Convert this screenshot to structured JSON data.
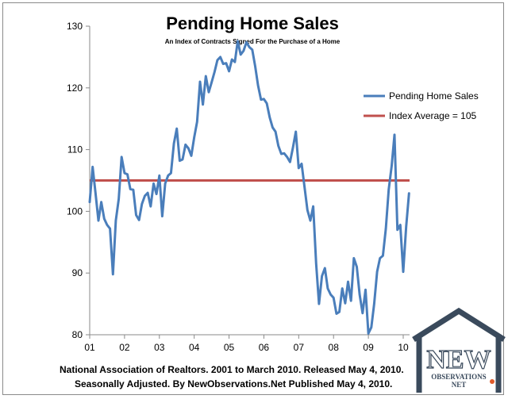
{
  "chart_data": {
    "type": "line",
    "title": "Pending Home Sales",
    "subtitle": "An Index of Contracts Signed For the Purchase of a Home",
    "ylim": [
      80,
      130
    ],
    "yticks": [
      80,
      90,
      100,
      110,
      120,
      130
    ],
    "xlim": [
      2001.0,
      2010.25
    ],
    "xticks": [
      {
        "value": 2001,
        "label": "01"
      },
      {
        "value": 2002,
        "label": "02"
      },
      {
        "value": 2003,
        "label": "03"
      },
      {
        "value": 2004,
        "label": "04"
      },
      {
        "value": 2005,
        "label": "05"
      },
      {
        "value": 2006,
        "label": "06"
      },
      {
        "value": 2007,
        "label": "07"
      },
      {
        "value": 2008,
        "label": "08"
      },
      {
        "value": 2009,
        "label": "09"
      },
      {
        "value": 2010,
        "label": "10"
      }
    ],
    "legend_position": "right",
    "grid": false,
    "series": [
      {
        "name": "Pending Home Sales",
        "color": "#4a7ebb",
        "x": [
          2001.0,
          2001.0833,
          2001.1667,
          2001.25,
          2001.3333,
          2001.4167,
          2001.5,
          2001.5833,
          2001.6667,
          2001.75,
          2001.8333,
          2001.9167,
          2002.0,
          2002.0833,
          2002.1667,
          2002.25,
          2002.3333,
          2002.4167,
          2002.5,
          2002.5833,
          2002.6667,
          2002.75,
          2002.8333,
          2002.9167,
          2003.0,
          2003.0833,
          2003.1667,
          2003.25,
          2003.3333,
          2003.4167,
          2003.5,
          2003.5833,
          2003.6667,
          2003.75,
          2003.8333,
          2003.9167,
          2004.0,
          2004.0833,
          2004.1667,
          2004.25,
          2004.3333,
          2004.4167,
          2004.5,
          2004.5833,
          2004.6667,
          2004.75,
          2004.8333,
          2004.9167,
          2005.0,
          2005.0833,
          2005.1667,
          2005.25,
          2005.3333,
          2005.4167,
          2005.5,
          2005.5833,
          2005.6667,
          2005.75,
          2005.8333,
          2005.9167,
          2006.0,
          2006.0833,
          2006.1667,
          2006.25,
          2006.3333,
          2006.4167,
          2006.5,
          2006.5833,
          2006.6667,
          2006.75,
          2006.8333,
          2006.9167,
          2007.0,
          2007.0833,
          2007.1667,
          2007.25,
          2007.3333,
          2007.4167,
          2007.5,
          2007.5833,
          2007.6667,
          2007.75,
          2007.8333,
          2007.9167,
          2008.0,
          2008.0833,
          2008.1667,
          2008.25,
          2008.3333,
          2008.4167,
          2008.5,
          2008.5833,
          2008.6667,
          2008.75,
          2008.8333,
          2008.9167,
          2009.0,
          2009.0833,
          2009.1667,
          2009.25,
          2009.3333,
          2009.4167,
          2009.5,
          2009.5833,
          2009.6667,
          2009.75,
          2009.8333,
          2009.9167,
          2010.0,
          2010.0833,
          2010.1667
        ],
        "values": [
          101.5,
          107.2,
          103.0,
          98.5,
          101.5,
          98.8,
          97.8,
          97.2,
          89.8,
          98.5,
          102.0,
          108.8,
          106.2,
          106.0,
          103.6,
          103.5,
          99.4,
          98.6,
          101.2,
          102.5,
          103.0,
          100.8,
          104.5,
          102.8,
          105.8,
          99.2,
          104.5,
          105.8,
          106.2,
          111.0,
          113.4,
          108.2,
          108.4,
          110.8,
          110.2,
          109.0,
          112.0,
          114.5,
          121.0,
          117.3,
          121.9,
          119.3,
          120.9,
          122.6,
          124.5,
          125.0,
          123.9,
          124.0,
          122.7,
          124.6,
          124.2,
          127.6,
          125.4,
          126.0,
          127.4,
          126.6,
          126.2,
          123.5,
          120.4,
          118.1,
          118.2,
          117.5,
          115.2,
          113.6,
          112.9,
          110.6,
          109.3,
          109.4,
          108.8,
          108.0,
          110.3,
          112.9,
          107.0,
          107.7,
          104.0,
          100.2,
          98.5,
          100.8,
          91.5,
          85.0,
          89.5,
          90.8,
          87.5,
          86.5,
          86.0,
          83.4,
          83.7,
          87.5,
          85.1,
          88.6,
          85.5,
          92.4,
          91.0,
          86.5,
          83.5,
          87.3,
          80.2,
          81.2,
          85.0,
          90.2,
          92.4,
          92.8,
          97.2,
          103.5,
          107.3,
          112.4,
          97.0,
          97.8,
          90.2,
          97.5,
          102.9
        ]
      },
      {
        "name": "Index Average = 105",
        "color": "#c0504d",
        "constant": 105
      }
    ]
  },
  "footnote": {
    "line1": "National Association of Realtors. 2001 to March 2010. Released May 4, 2010.",
    "line2": "Seasonally Adjusted. By NewObservations.Net Published May 4, 2010."
  },
  "logo": {
    "word": "NEW",
    "sub": "OBSERVATIONS",
    "net": "NET",
    "color": "#3a4a5c",
    "accent": "#e05a2a"
  }
}
